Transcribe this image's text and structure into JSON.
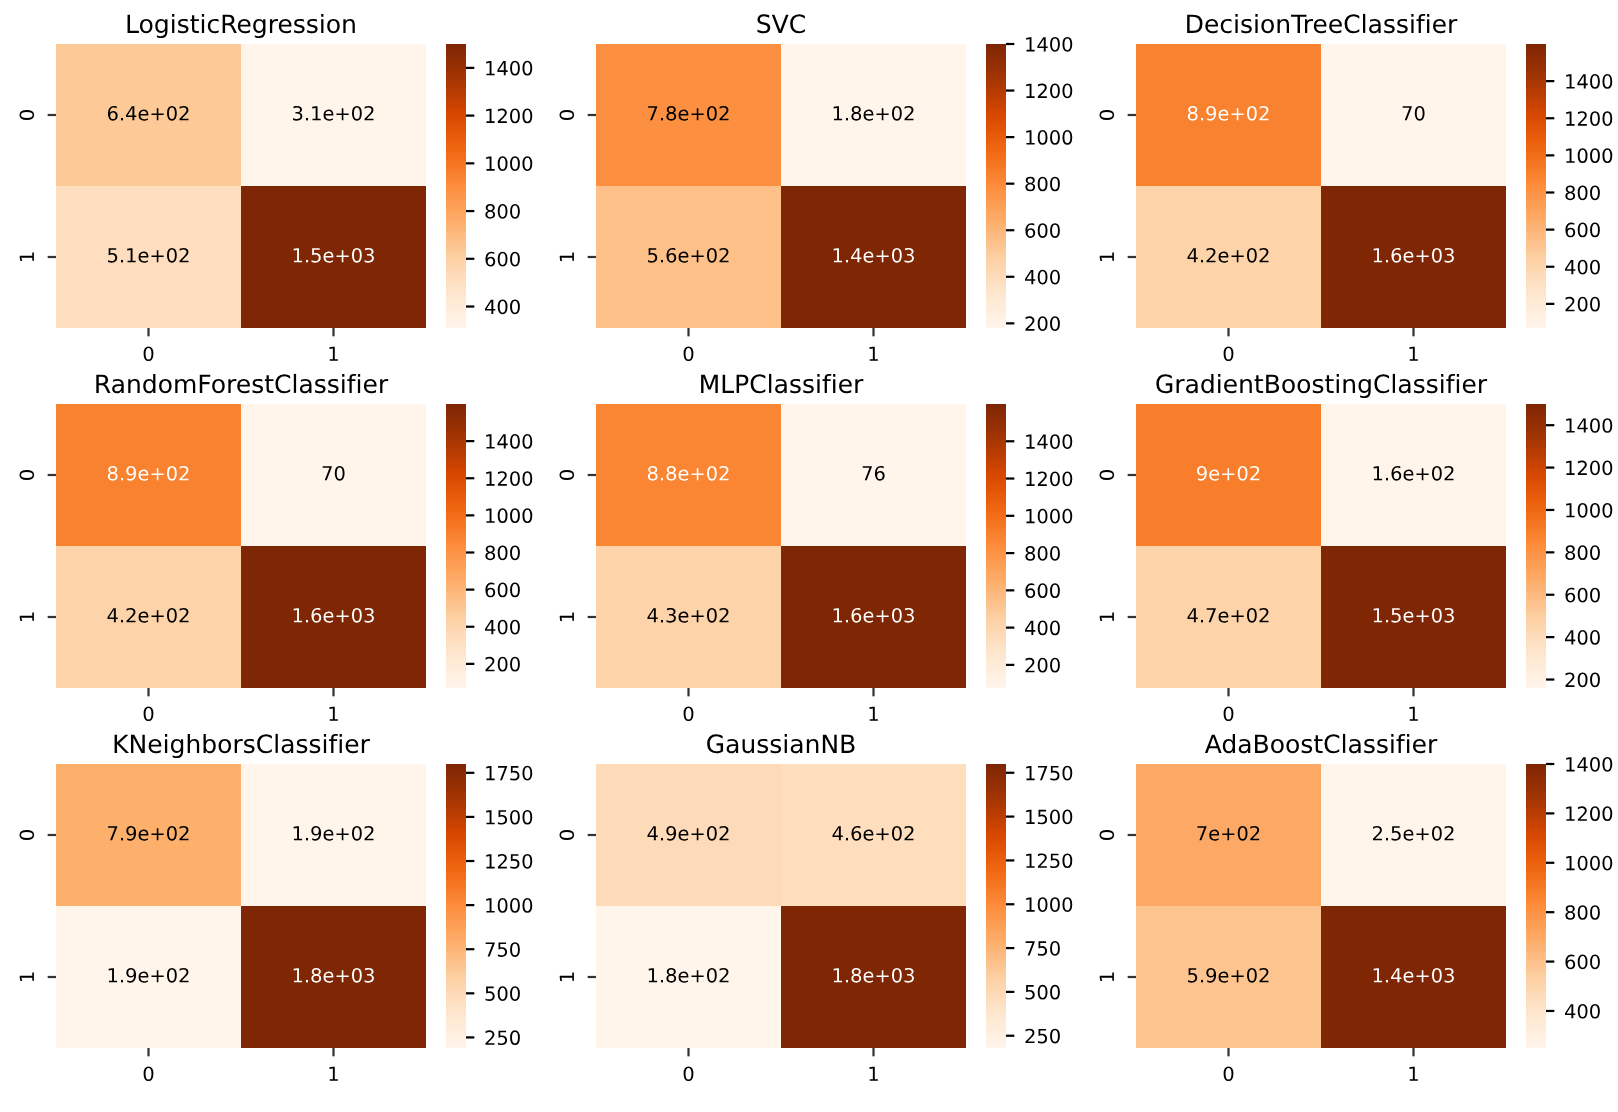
{
  "chart_data": [
    {
      "type": "heatmap",
      "title": "LogisticRegression",
      "categories": [
        "0",
        "1"
      ],
      "y_categories": [
        "0",
        "1"
      ],
      "cells": [
        [
          640,
          310
        ],
        [
          510,
          1500
        ]
      ],
      "cell_labels": [
        [
          "6.4e+02",
          "3.1e+02"
        ],
        [
          "5.1e+02",
          "1.5e+03"
        ]
      ],
      "clim": [
        310,
        1500
      ],
      "cticks": [
        400,
        600,
        800,
        1000,
        1200,
        1400
      ]
    },
    {
      "type": "heatmap",
      "title": "SVC",
      "categories": [
        "0",
        "1"
      ],
      "y_categories": [
        "0",
        "1"
      ],
      "cells": [
        [
          780,
          180
        ],
        [
          560,
          1400
        ]
      ],
      "cell_labels": [
        [
          "7.8e+02",
          "1.8e+02"
        ],
        [
          "5.6e+02",
          "1.4e+03"
        ]
      ],
      "clim": [
        180,
        1400
      ],
      "cticks": [
        200,
        400,
        600,
        800,
        1000,
        1200,
        1400
      ]
    },
    {
      "type": "heatmap",
      "title": "DecisionTreeClassifier",
      "categories": [
        "0",
        "1"
      ],
      "y_categories": [
        "0",
        "1"
      ],
      "cells": [
        [
          890,
          70
        ],
        [
          420,
          1600
        ]
      ],
      "cell_labels": [
        [
          "8.9e+02",
          "70"
        ],
        [
          "4.2e+02",
          "1.6e+03"
        ]
      ],
      "clim": [
        70,
        1600
      ],
      "cticks": [
        200,
        400,
        600,
        800,
        1000,
        1200,
        1400
      ]
    },
    {
      "type": "heatmap",
      "title": "RandomForestClassifier",
      "categories": [
        "0",
        "1"
      ],
      "y_categories": [
        "0",
        "1"
      ],
      "cells": [
        [
          890,
          70
        ],
        [
          420,
          1600
        ]
      ],
      "cell_labels": [
        [
          "8.9e+02",
          "70"
        ],
        [
          "4.2e+02",
          "1.6e+03"
        ]
      ],
      "clim": [
        70,
        1600
      ],
      "cticks": [
        200,
        400,
        600,
        800,
        1000,
        1200,
        1400
      ]
    },
    {
      "type": "heatmap",
      "title": "MLPClassifier",
      "categories": [
        "0",
        "1"
      ],
      "y_categories": [
        "0",
        "1"
      ],
      "cells": [
        [
          880,
          76
        ],
        [
          430,
          1600
        ]
      ],
      "cell_labels": [
        [
          "8.8e+02",
          "76"
        ],
        [
          "4.3e+02",
          "1.6e+03"
        ]
      ],
      "clim": [
        76,
        1600
      ],
      "cticks": [
        200,
        400,
        600,
        800,
        1000,
        1200,
        1400
      ]
    },
    {
      "type": "heatmap",
      "title": "GradientBoostingClassifier",
      "categories": [
        "0",
        "1"
      ],
      "y_categories": [
        "0",
        "1"
      ],
      "cells": [
        [
          900,
          160
        ],
        [
          470,
          1500
        ]
      ],
      "cell_labels": [
        [
          "9e+02",
          "1.6e+02"
        ],
        [
          "4.7e+02",
          "1.5e+03"
        ]
      ],
      "clim": [
        160,
        1500
      ],
      "cticks": [
        200,
        400,
        600,
        800,
        1000,
        1200,
        1400
      ]
    },
    {
      "type": "heatmap",
      "title": "KNeighborsClassifier",
      "categories": [
        "0",
        "1"
      ],
      "y_categories": [
        "0",
        "1"
      ],
      "cells": [
        [
          790,
          190
        ],
        [
          190,
          1800
        ]
      ],
      "cell_labels": [
        [
          "7.9e+02",
          "1.9e+02"
        ],
        [
          "1.9e+02",
          "1.8e+03"
        ]
      ],
      "clim": [
        190,
        1800
      ],
      "cticks": [
        250,
        500,
        750,
        1000,
        1250,
        1500,
        1750
      ]
    },
    {
      "type": "heatmap",
      "title": "GaussianNB",
      "categories": [
        "0",
        "1"
      ],
      "y_categories": [
        "0",
        "1"
      ],
      "cells": [
        [
          490,
          460
        ],
        [
          180,
          1800
        ]
      ],
      "cell_labels": [
        [
          "4.9e+02",
          "4.6e+02"
        ],
        [
          "1.8e+02",
          "1.8e+03"
        ]
      ],
      "clim": [
        180,
        1800
      ],
      "cticks": [
        250,
        500,
        750,
        1000,
        1250,
        1500,
        1750
      ]
    },
    {
      "type": "heatmap",
      "title": "AdaBoostClassifier",
      "categories": [
        "0",
        "1"
      ],
      "y_categories": [
        "0",
        "1"
      ],
      "cells": [
        [
          700,
          250
        ],
        [
          590,
          1400
        ]
      ],
      "cell_labels": [
        [
          "7e+02",
          "2.5e+02"
        ],
        [
          "5.9e+02",
          "1.4e+03"
        ]
      ],
      "clim": [
        250,
        1400
      ],
      "cticks": [
        400,
        600,
        800,
        1000,
        1200,
        1400
      ]
    }
  ]
}
